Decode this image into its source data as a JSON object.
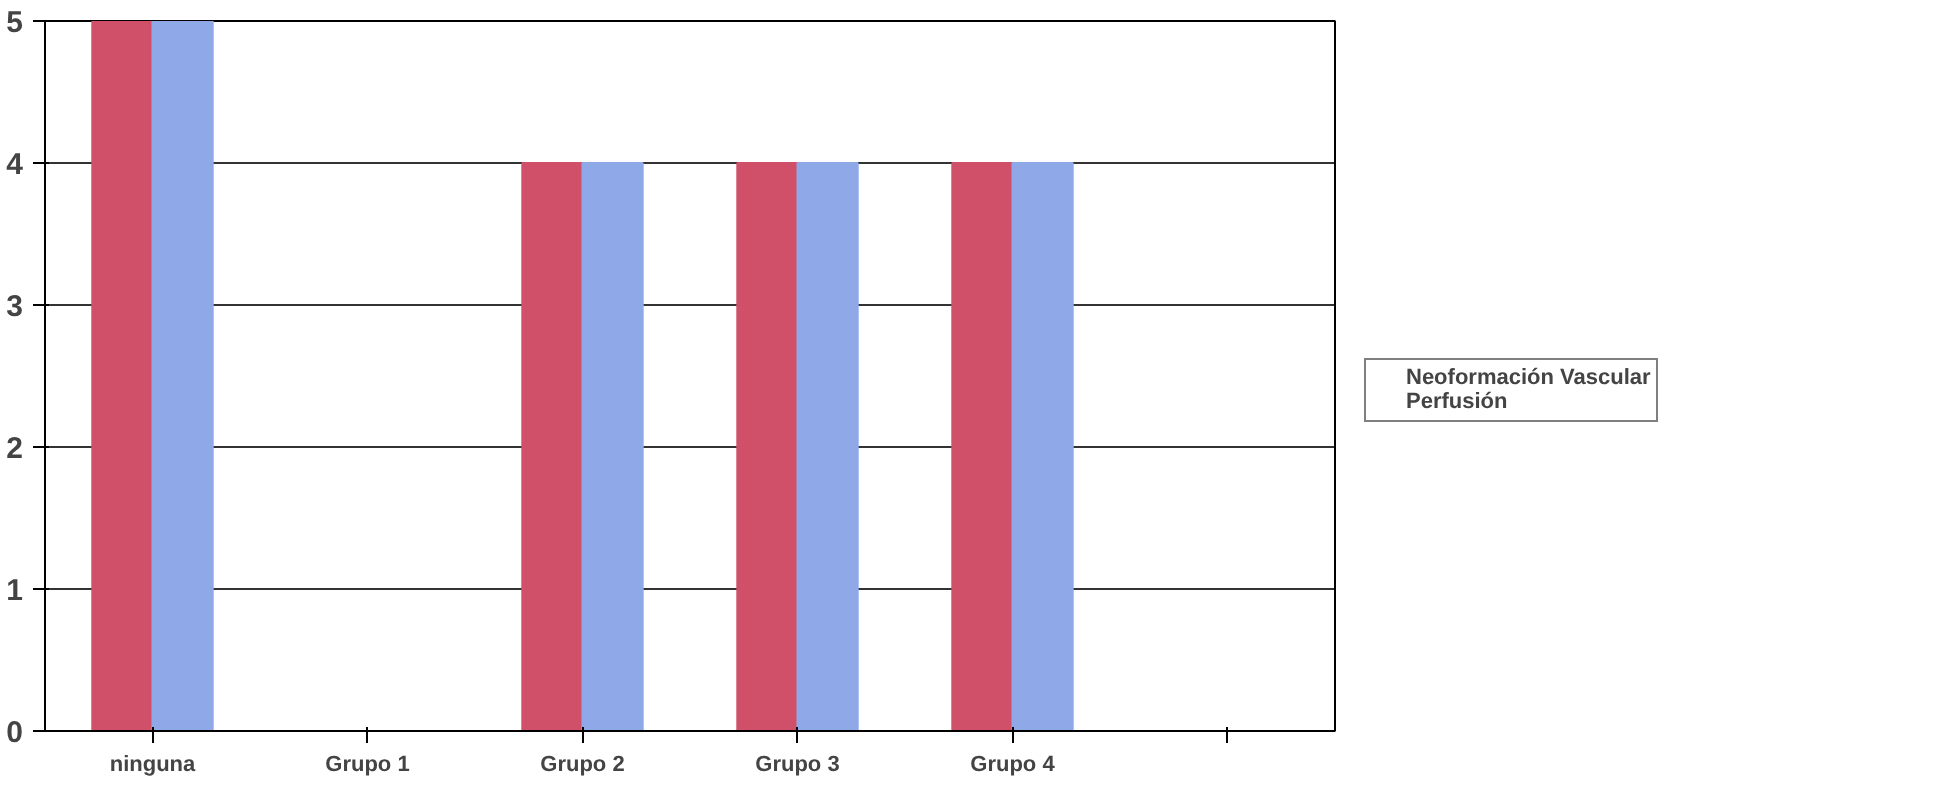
{
  "chart_data": {
    "type": "bar",
    "categories": [
      "ninguna",
      "Grupo 1",
      "Grupo 2",
      "Grupo 3",
      "Grupo 4",
      null
    ],
    "series": [
      {
        "name": "Neoformación Vascular",
        "color": "#d0506a",
        "values": [
          5,
          0,
          4,
          4,
          4,
          null
        ]
      },
      {
        "name": "Perfusión",
        "color": "#8fa8e8",
        "values": [
          5,
          0,
          4,
          4,
          4,
          null
        ]
      }
    ],
    "ylim": [
      0,
      5
    ],
    "yticks": [
      0,
      1,
      2,
      3,
      4,
      5
    ],
    "grid": "y",
    "legend": "right"
  }
}
